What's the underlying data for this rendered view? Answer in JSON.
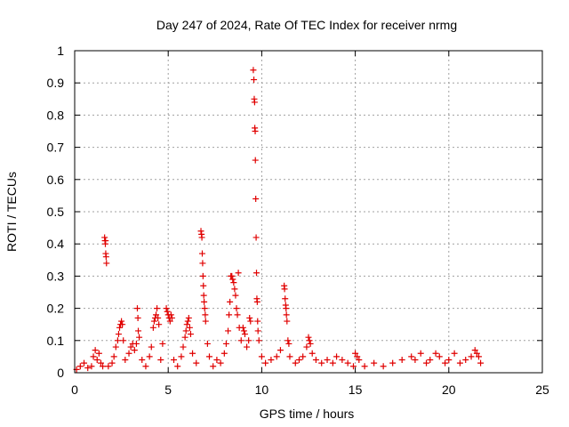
{
  "chart_data": {
    "type": "scatter",
    "title": "Day 247 of 2024, Rate Of TEC Index for receiver nrmg",
    "xlabel": "GPS time / hours",
    "ylabel": "ROTI / TECUs",
    "xlim": [
      0,
      25
    ],
    "ylim": [
      0,
      1
    ],
    "x_ticks": [
      0,
      5,
      10,
      15,
      20,
      25
    ],
    "y_ticks": [
      0,
      0.1,
      0.2,
      0.3,
      0.4,
      0.5,
      0.6,
      0.7,
      0.8,
      0.9,
      1
    ],
    "x_tick_labels": [
      "0",
      "5",
      "10",
      "15",
      "20",
      "25"
    ],
    "y_tick_labels": [
      "0",
      "0.1",
      "0.2",
      "0.3",
      "0.4",
      "0.5",
      "0.6",
      "0.7",
      "0.8",
      "0.9",
      "1"
    ],
    "grid": true,
    "legend": "none",
    "marker": "plus",
    "marker_color": "#e00000",
    "series": [
      {
        "points": [
          [
            0.1,
            0.01
          ],
          [
            0.3,
            0.02
          ],
          [
            0.5,
            0.03
          ],
          [
            0.7,
            0.015
          ],
          [
            0.9,
            0.02
          ],
          [
            1.0,
            0.05
          ],
          [
            1.1,
            0.07
          ],
          [
            1.2,
            0.04
          ],
          [
            1.3,
            0.06
          ],
          [
            1.4,
            0.03
          ],
          [
            1.5,
            0.02
          ],
          [
            1.6,
            0.42
          ],
          [
            1.62,
            0.41
          ],
          [
            1.64,
            0.4
          ],
          [
            1.66,
            0.37
          ],
          [
            1.68,
            0.36
          ],
          [
            1.7,
            0.34
          ],
          [
            1.65,
            0.41
          ],
          [
            1.8,
            0.02
          ],
          [
            2.0,
            0.03
          ],
          [
            2.1,
            0.05
          ],
          [
            2.2,
            0.08
          ],
          [
            2.3,
            0.1
          ],
          [
            2.35,
            0.12
          ],
          [
            2.4,
            0.14
          ],
          [
            2.45,
            0.15
          ],
          [
            2.5,
            0.16
          ],
          [
            2.55,
            0.15
          ],
          [
            2.6,
            0.1
          ],
          [
            2.7,
            0.04
          ],
          [
            2.9,
            0.06
          ],
          [
            3.0,
            0.08
          ],
          [
            3.1,
            0.09
          ],
          [
            3.2,
            0.07
          ],
          [
            3.3,
            0.09
          ],
          [
            3.35,
            0.2
          ],
          [
            3.38,
            0.17
          ],
          [
            3.4,
            0.13
          ],
          [
            3.45,
            0.11
          ],
          [
            3.6,
            0.04
          ],
          [
            3.8,
            0.02
          ],
          [
            4.0,
            0.05
          ],
          [
            4.1,
            0.08
          ],
          [
            4.2,
            0.14
          ],
          [
            4.25,
            0.16
          ],
          [
            4.3,
            0.17
          ],
          [
            4.35,
            0.18
          ],
          [
            4.4,
            0.2
          ],
          [
            4.45,
            0.17
          ],
          [
            4.5,
            0.15
          ],
          [
            4.6,
            0.04
          ],
          [
            4.7,
            0.09
          ],
          [
            4.9,
            0.2
          ],
          [
            4.95,
            0.19
          ],
          [
            5.0,
            0.18
          ],
          [
            5.05,
            0.17
          ],
          [
            5.1,
            0.16
          ],
          [
            5.15,
            0.18
          ],
          [
            5.2,
            0.17
          ],
          [
            5.3,
            0.04
          ],
          [
            5.5,
            0.02
          ],
          [
            5.7,
            0.05
          ],
          [
            5.8,
            0.08
          ],
          [
            5.9,
            0.11
          ],
          [
            5.95,
            0.13
          ],
          [
            6.0,
            0.15
          ],
          [
            6.05,
            0.16
          ],
          [
            6.1,
            0.17
          ],
          [
            6.15,
            0.14
          ],
          [
            6.2,
            0.12
          ],
          [
            6.3,
            0.06
          ],
          [
            6.5,
            0.03
          ],
          [
            6.75,
            0.44
          ],
          [
            6.78,
            0.43
          ],
          [
            6.8,
            0.42
          ],
          [
            6.82,
            0.37
          ],
          [
            6.84,
            0.34
          ],
          [
            6.86,
            0.3
          ],
          [
            6.88,
            0.27
          ],
          [
            6.9,
            0.24
          ],
          [
            6.92,
            0.22
          ],
          [
            6.95,
            0.2
          ],
          [
            6.98,
            0.18
          ],
          [
            7.0,
            0.16
          ],
          [
            7.1,
            0.09
          ],
          [
            7.2,
            0.05
          ],
          [
            7.4,
            0.02
          ],
          [
            7.6,
            0.04
          ],
          [
            7.8,
            0.03
          ],
          [
            8.0,
            0.06
          ],
          [
            8.1,
            0.09
          ],
          [
            8.2,
            0.13
          ],
          [
            8.25,
            0.18
          ],
          [
            8.3,
            0.22
          ],
          [
            8.35,
            0.3
          ],
          [
            8.4,
            0.3
          ],
          [
            8.45,
            0.29
          ],
          [
            8.5,
            0.28
          ],
          [
            8.55,
            0.26
          ],
          [
            8.6,
            0.24
          ],
          [
            8.65,
            0.2
          ],
          [
            8.7,
            0.18
          ],
          [
            8.75,
            0.31
          ],
          [
            8.8,
            0.14
          ],
          [
            8.9,
            0.1
          ],
          [
            9.0,
            0.14
          ],
          [
            9.05,
            0.13
          ],
          [
            9.1,
            0.12
          ],
          [
            9.2,
            0.08
          ],
          [
            9.3,
            0.1
          ],
          [
            9.35,
            0.17
          ],
          [
            9.4,
            0.16
          ],
          [
            9.55,
            0.94
          ],
          [
            9.58,
            0.91
          ],
          [
            9.6,
            0.85
          ],
          [
            9.62,
            0.84
          ],
          [
            9.63,
            0.76
          ],
          [
            9.65,
            0.75
          ],
          [
            9.66,
            0.66
          ],
          [
            9.68,
            0.54
          ],
          [
            9.7,
            0.42
          ],
          [
            9.72,
            0.31
          ],
          [
            9.74,
            0.23
          ],
          [
            9.76,
            0.22
          ],
          [
            9.78,
            0.16
          ],
          [
            9.8,
            0.13
          ],
          [
            9.85,
            0.1
          ],
          [
            10.0,
            0.05
          ],
          [
            10.2,
            0.03
          ],
          [
            10.5,
            0.04
          ],
          [
            10.8,
            0.05
          ],
          [
            11.0,
            0.07
          ],
          [
            11.2,
            0.27
          ],
          [
            11.22,
            0.26
          ],
          [
            11.25,
            0.23
          ],
          [
            11.28,
            0.21
          ],
          [
            11.3,
            0.2
          ],
          [
            11.32,
            0.18
          ],
          [
            11.35,
            0.16
          ],
          [
            11.4,
            0.1
          ],
          [
            11.45,
            0.09
          ],
          [
            11.5,
            0.05
          ],
          [
            11.8,
            0.03
          ],
          [
            12.0,
            0.04
          ],
          [
            12.2,
            0.05
          ],
          [
            12.4,
            0.08
          ],
          [
            12.5,
            0.11
          ],
          [
            12.55,
            0.1
          ],
          [
            12.6,
            0.09
          ],
          [
            12.7,
            0.06
          ],
          [
            12.9,
            0.04
          ],
          [
            13.2,
            0.03
          ],
          [
            13.5,
            0.04
          ],
          [
            13.8,
            0.03
          ],
          [
            14.0,
            0.05
          ],
          [
            14.3,
            0.04
          ],
          [
            14.6,
            0.03
          ],
          [
            14.9,
            0.02
          ],
          [
            15.0,
            0.06
          ],
          [
            15.1,
            0.05
          ],
          [
            15.2,
            0.04
          ],
          [
            15.5,
            0.02
          ],
          [
            16.0,
            0.03
          ],
          [
            16.5,
            0.02
          ],
          [
            17.0,
            0.03
          ],
          [
            17.5,
            0.04
          ],
          [
            18.0,
            0.05
          ],
          [
            18.2,
            0.04
          ],
          [
            18.5,
            0.06
          ],
          [
            18.8,
            0.03
          ],
          [
            19.0,
            0.04
          ],
          [
            19.3,
            0.06
          ],
          [
            19.5,
            0.05
          ],
          [
            19.8,
            0.03
          ],
          [
            20.0,
            0.04
          ],
          [
            20.3,
            0.06
          ],
          [
            20.6,
            0.03
          ],
          [
            20.9,
            0.04
          ],
          [
            21.2,
            0.05
          ],
          [
            21.4,
            0.07
          ],
          [
            21.5,
            0.06
          ],
          [
            21.6,
            0.05
          ],
          [
            21.7,
            0.03
          ]
        ]
      }
    ]
  }
}
